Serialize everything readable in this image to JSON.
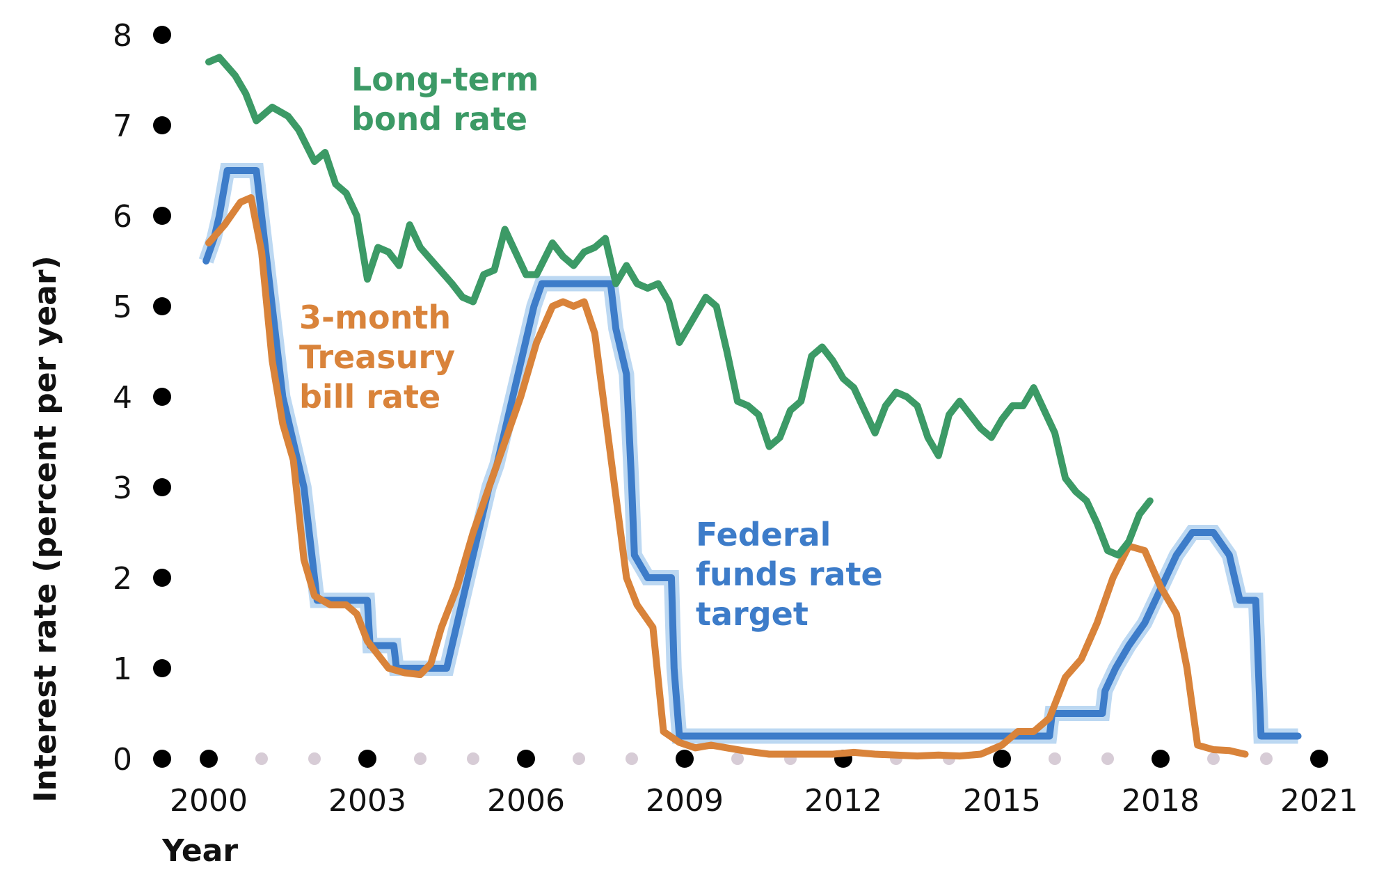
{
  "chart_data": {
    "type": "line",
    "title": "",
    "xlabel": "Year",
    "ylabel": "Interest rate (percent per year)",
    "xlim": [
      1999.5,
      2021.3
    ],
    "ylim": [
      0,
      8
    ],
    "x_ticks": [
      2000,
      2003,
      2006,
      2009,
      2012,
      2015,
      2018,
      2021
    ],
    "x_tick_labels": [
      "2000",
      "2003",
      "2006",
      "2009",
      "2012",
      "2015",
      "2018",
      "2021"
    ],
    "y_ticks": [
      0,
      1,
      2,
      3,
      4,
      5,
      6,
      7,
      8
    ],
    "y_tick_labels": [
      "0",
      "1",
      "2",
      "3",
      "4",
      "5",
      "6",
      "7",
      "8"
    ],
    "grid": false,
    "legend": "inline",
    "series": [
      {
        "name": "Long-term bond rate",
        "label_lines": [
          "Long-term",
          "bond rate"
        ],
        "color": "#3c9a66",
        "points": [
          [
            2000.0,
            7.7
          ],
          [
            2000.2,
            7.75
          ],
          [
            2000.5,
            7.55
          ],
          [
            2000.7,
            7.35
          ],
          [
            2000.9,
            7.05
          ],
          [
            2001.2,
            7.2
          ],
          [
            2001.5,
            7.1
          ],
          [
            2001.7,
            6.95
          ],
          [
            2002.0,
            6.6
          ],
          [
            2002.2,
            6.7
          ],
          [
            2002.4,
            6.35
          ],
          [
            2002.6,
            6.25
          ],
          [
            2002.8,
            6.0
          ],
          [
            2003.0,
            5.3
          ],
          [
            2003.2,
            5.65
          ],
          [
            2003.4,
            5.6
          ],
          [
            2003.6,
            5.45
          ],
          [
            2003.8,
            5.9
          ],
          [
            2004.0,
            5.65
          ],
          [
            2004.3,
            5.45
          ],
          [
            2004.6,
            5.25
          ],
          [
            2004.8,
            5.1
          ],
          [
            2005.0,
            5.05
          ],
          [
            2005.2,
            5.35
          ],
          [
            2005.4,
            5.4
          ],
          [
            2005.6,
            5.85
          ],
          [
            2005.8,
            5.6
          ],
          [
            2006.0,
            5.35
          ],
          [
            2006.2,
            5.35
          ],
          [
            2006.5,
            5.7
          ],
          [
            2006.7,
            5.55
          ],
          [
            2006.9,
            5.45
          ],
          [
            2007.1,
            5.6
          ],
          [
            2007.3,
            5.65
          ],
          [
            2007.5,
            5.75
          ],
          [
            2007.7,
            5.25
          ],
          [
            2007.9,
            5.45
          ],
          [
            2008.1,
            5.25
          ],
          [
            2008.3,
            5.2
          ],
          [
            2008.5,
            5.25
          ],
          [
            2008.7,
            5.05
          ],
          [
            2008.9,
            4.6
          ],
          [
            2009.2,
            4.9
          ],
          [
            2009.4,
            5.1
          ],
          [
            2009.6,
            5.0
          ],
          [
            2009.8,
            4.5
          ],
          [
            2010.0,
            3.95
          ],
          [
            2010.2,
            3.9
          ],
          [
            2010.4,
            3.8
          ],
          [
            2010.6,
            3.45
          ],
          [
            2010.8,
            3.55
          ],
          [
            2011.0,
            3.85
          ],
          [
            2011.2,
            3.95
          ],
          [
            2011.4,
            4.45
          ],
          [
            2011.6,
            4.55
          ],
          [
            2011.8,
            4.4
          ],
          [
            2012.0,
            4.2
          ],
          [
            2012.2,
            4.1
          ],
          [
            2012.4,
            3.85
          ],
          [
            2012.6,
            3.6
          ],
          [
            2012.8,
            3.9
          ],
          [
            2013.0,
            4.05
          ],
          [
            2013.2,
            4.0
          ],
          [
            2013.4,
            3.9
          ],
          [
            2013.6,
            3.55
          ],
          [
            2013.8,
            3.35
          ],
          [
            2014.0,
            3.8
          ],
          [
            2014.2,
            3.95
          ],
          [
            2014.4,
            3.8
          ],
          [
            2014.6,
            3.65
          ],
          [
            2014.8,
            3.55
          ],
          [
            2015.0,
            3.75
          ],
          [
            2015.2,
            3.9
          ],
          [
            2015.4,
            3.9
          ],
          [
            2015.6,
            4.1
          ],
          [
            2015.8,
            3.85
          ],
          [
            2016.0,
            3.6
          ],
          [
            2016.2,
            3.1
          ],
          [
            2016.4,
            2.95
          ],
          [
            2016.6,
            2.85
          ],
          [
            2016.8,
            2.6
          ],
          [
            2017.0,
            2.3
          ],
          [
            2017.2,
            2.25
          ],
          [
            2017.4,
            2.4
          ],
          [
            2017.6,
            2.7
          ],
          [
            2017.8,
            2.85
          ]
        ]
      },
      {
        "name": "3-month Treasury bill rate",
        "label_lines": [
          "3-month",
          "Treasury",
          "bill rate"
        ],
        "color": "#d9833a",
        "points": [
          [
            2000.0,
            5.7
          ],
          [
            2000.3,
            5.9
          ],
          [
            2000.6,
            6.15
          ],
          [
            2000.8,
            6.2
          ],
          [
            2001.0,
            5.6
          ],
          [
            2001.2,
            4.4
          ],
          [
            2001.4,
            3.7
          ],
          [
            2001.6,
            3.3
          ],
          [
            2001.8,
            2.2
          ],
          [
            2002.0,
            1.8
          ],
          [
            2002.3,
            1.7
          ],
          [
            2002.6,
            1.7
          ],
          [
            2002.8,
            1.6
          ],
          [
            2003.0,
            1.3
          ],
          [
            2003.2,
            1.15
          ],
          [
            2003.4,
            1.0
          ],
          [
            2003.7,
            0.95
          ],
          [
            2004.0,
            0.93
          ],
          [
            2004.2,
            1.05
          ],
          [
            2004.4,
            1.45
          ],
          [
            2004.7,
            1.9
          ],
          [
            2005.0,
            2.5
          ],
          [
            2005.3,
            3.0
          ],
          [
            2005.6,
            3.5
          ],
          [
            2005.9,
            4.0
          ],
          [
            2006.2,
            4.6
          ],
          [
            2006.5,
            5.0
          ],
          [
            2006.7,
            5.05
          ],
          [
            2006.9,
            5.0
          ],
          [
            2007.1,
            5.05
          ],
          [
            2007.3,
            4.7
          ],
          [
            2007.5,
            3.8
          ],
          [
            2007.7,
            2.9
          ],
          [
            2007.9,
            2.0
          ],
          [
            2008.1,
            1.7
          ],
          [
            2008.4,
            1.45
          ],
          [
            2008.6,
            0.3
          ],
          [
            2008.9,
            0.18
          ],
          [
            2009.2,
            0.12
          ],
          [
            2009.5,
            0.15
          ],
          [
            2009.8,
            0.12
          ],
          [
            2010.2,
            0.08
          ],
          [
            2010.6,
            0.05
          ],
          [
            2011.0,
            0.05
          ],
          [
            2011.4,
            0.05
          ],
          [
            2011.8,
            0.05
          ],
          [
            2012.2,
            0.07
          ],
          [
            2012.6,
            0.05
          ],
          [
            2013.0,
            0.04
          ],
          [
            2013.4,
            0.03
          ],
          [
            2013.8,
            0.04
          ],
          [
            2014.2,
            0.03
          ],
          [
            2014.6,
            0.05
          ],
          [
            2015.0,
            0.15
          ],
          [
            2015.3,
            0.3
          ],
          [
            2015.6,
            0.3
          ],
          [
            2015.9,
            0.45
          ],
          [
            2016.2,
            0.9
          ],
          [
            2016.5,
            1.1
          ],
          [
            2016.8,
            1.5
          ],
          [
            2017.1,
            2.0
          ],
          [
            2017.4,
            2.35
          ],
          [
            2017.7,
            2.3
          ],
          [
            2018.0,
            1.9
          ],
          [
            2018.3,
            1.6
          ],
          [
            2018.5,
            1.0
          ],
          [
            2018.7,
            0.15
          ],
          [
            2019.0,
            0.1
          ],
          [
            2019.3,
            0.09
          ],
          [
            2019.6,
            0.05
          ]
        ]
      },
      {
        "name": "Federal funds rate target",
        "label_lines": [
          "Federal",
          "funds rate",
          "target"
        ],
        "color": "#3d7cc9",
        "band_color": "#bcd8f2",
        "points": [
          [
            1999.95,
            5.5
          ],
          [
            2000.1,
            5.75
          ],
          [
            2000.2,
            6.0
          ],
          [
            2000.35,
            6.5
          ],
          [
            2000.9,
            6.5
          ],
          [
            2001.0,
            6.0
          ],
          [
            2001.1,
            5.5
          ],
          [
            2001.2,
            5.0
          ],
          [
            2001.3,
            4.5
          ],
          [
            2001.4,
            4.0
          ],
          [
            2001.5,
            3.75
          ],
          [
            2001.6,
            3.5
          ],
          [
            2001.8,
            3.0
          ],
          [
            2001.9,
            2.5
          ],
          [
            2002.0,
            2.0
          ],
          [
            2002.05,
            1.75
          ],
          [
            2003.0,
            1.75
          ],
          [
            2003.05,
            1.25
          ],
          [
            2003.5,
            1.25
          ],
          [
            2003.55,
            1.0
          ],
          [
            2004.5,
            1.0
          ],
          [
            2004.6,
            1.25
          ],
          [
            2004.7,
            1.5
          ],
          [
            2004.8,
            1.75
          ],
          [
            2004.9,
            2.0
          ],
          [
            2005.0,
            2.25
          ],
          [
            2005.1,
            2.5
          ],
          [
            2005.2,
            2.75
          ],
          [
            2005.3,
            3.0
          ],
          [
            2005.45,
            3.25
          ],
          [
            2005.55,
            3.5
          ],
          [
            2005.65,
            3.75
          ],
          [
            2005.75,
            4.0
          ],
          [
            2005.85,
            4.25
          ],
          [
            2005.95,
            4.5
          ],
          [
            2006.05,
            4.75
          ],
          [
            2006.15,
            5.0
          ],
          [
            2006.3,
            5.25
          ],
          [
            2007.6,
            5.25
          ],
          [
            2007.7,
            4.75
          ],
          [
            2007.8,
            4.5
          ],
          [
            2007.9,
            4.25
          ],
          [
            2008.0,
            3.0
          ],
          [
            2008.05,
            2.25
          ],
          [
            2008.3,
            2.0
          ],
          [
            2008.75,
            2.0
          ],
          [
            2008.8,
            1.0
          ],
          [
            2008.9,
            0.25
          ],
          [
            2015.9,
            0.25
          ],
          [
            2015.95,
            0.5
          ],
          [
            2016.9,
            0.5
          ],
          [
            2016.95,
            0.75
          ],
          [
            2017.15,
            1.0
          ],
          [
            2017.4,
            1.25
          ],
          [
            2017.7,
            1.5
          ],
          [
            2017.9,
            1.75
          ],
          [
            2018.1,
            2.0
          ],
          [
            2018.3,
            2.25
          ],
          [
            2018.6,
            2.5
          ],
          [
            2019.0,
            2.5
          ],
          [
            2019.3,
            2.25
          ],
          [
            2019.5,
            1.75
          ],
          [
            2019.8,
            1.75
          ],
          [
            2019.9,
            0.25
          ],
          [
            2020.6,
            0.25
          ]
        ]
      }
    ]
  }
}
